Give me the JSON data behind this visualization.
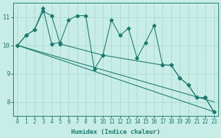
{
  "xlabel": "Humidex (Indice chaleur)",
  "bg_color": "#c8ece6",
  "line_color": "#1a7a6e",
  "grid_color": "#a8d8d0",
  "xlim": [
    -0.5,
    23.5
  ],
  "ylim": [
    7.5,
    11.5
  ],
  "xticks": [
    0,
    1,
    2,
    3,
    4,
    5,
    6,
    7,
    8,
    9,
    10,
    11,
    12,
    13,
    14,
    15,
    16,
    17,
    18,
    19,
    20,
    21,
    22,
    23
  ],
  "yticks": [
    8,
    9,
    10,
    11
  ],
  "series1_x": [
    0,
    1,
    2,
    3,
    4,
    5,
    6,
    7,
    8,
    9,
    10,
    11,
    12,
    13,
    14,
    15,
    16,
    17,
    18,
    19,
    20,
    21,
    22,
    23
  ],
  "series1_y": [
    10.0,
    10.35,
    10.55,
    11.3,
    10.05,
    10.1,
    10.9,
    11.05,
    11.05,
    9.15,
    9.65,
    10.9,
    10.35,
    10.6,
    9.55,
    10.1,
    10.7,
    9.3,
    9.3,
    8.85,
    8.6,
    8.15,
    8.15,
    7.65
  ],
  "series2_x": [
    0,
    1,
    2,
    3,
    4,
    5,
    10,
    17,
    18,
    19,
    20,
    21,
    22,
    23
  ],
  "series2_y": [
    10.0,
    10.35,
    10.55,
    11.2,
    11.05,
    10.05,
    9.65,
    9.3,
    9.3,
    8.85,
    8.6,
    8.15,
    8.15,
    7.65
  ],
  "line3_x": [
    0,
    23
  ],
  "line3_y": [
    10.0,
    7.65
  ],
  "line4_x": [
    0,
    23
  ],
  "line4_y": [
    10.0,
    8.0
  ],
  "marker_size": 2.5,
  "xlabel_fontsize": 6.5,
  "tick_fontsize": 5.5,
  "ytick_fontsize": 6.5
}
